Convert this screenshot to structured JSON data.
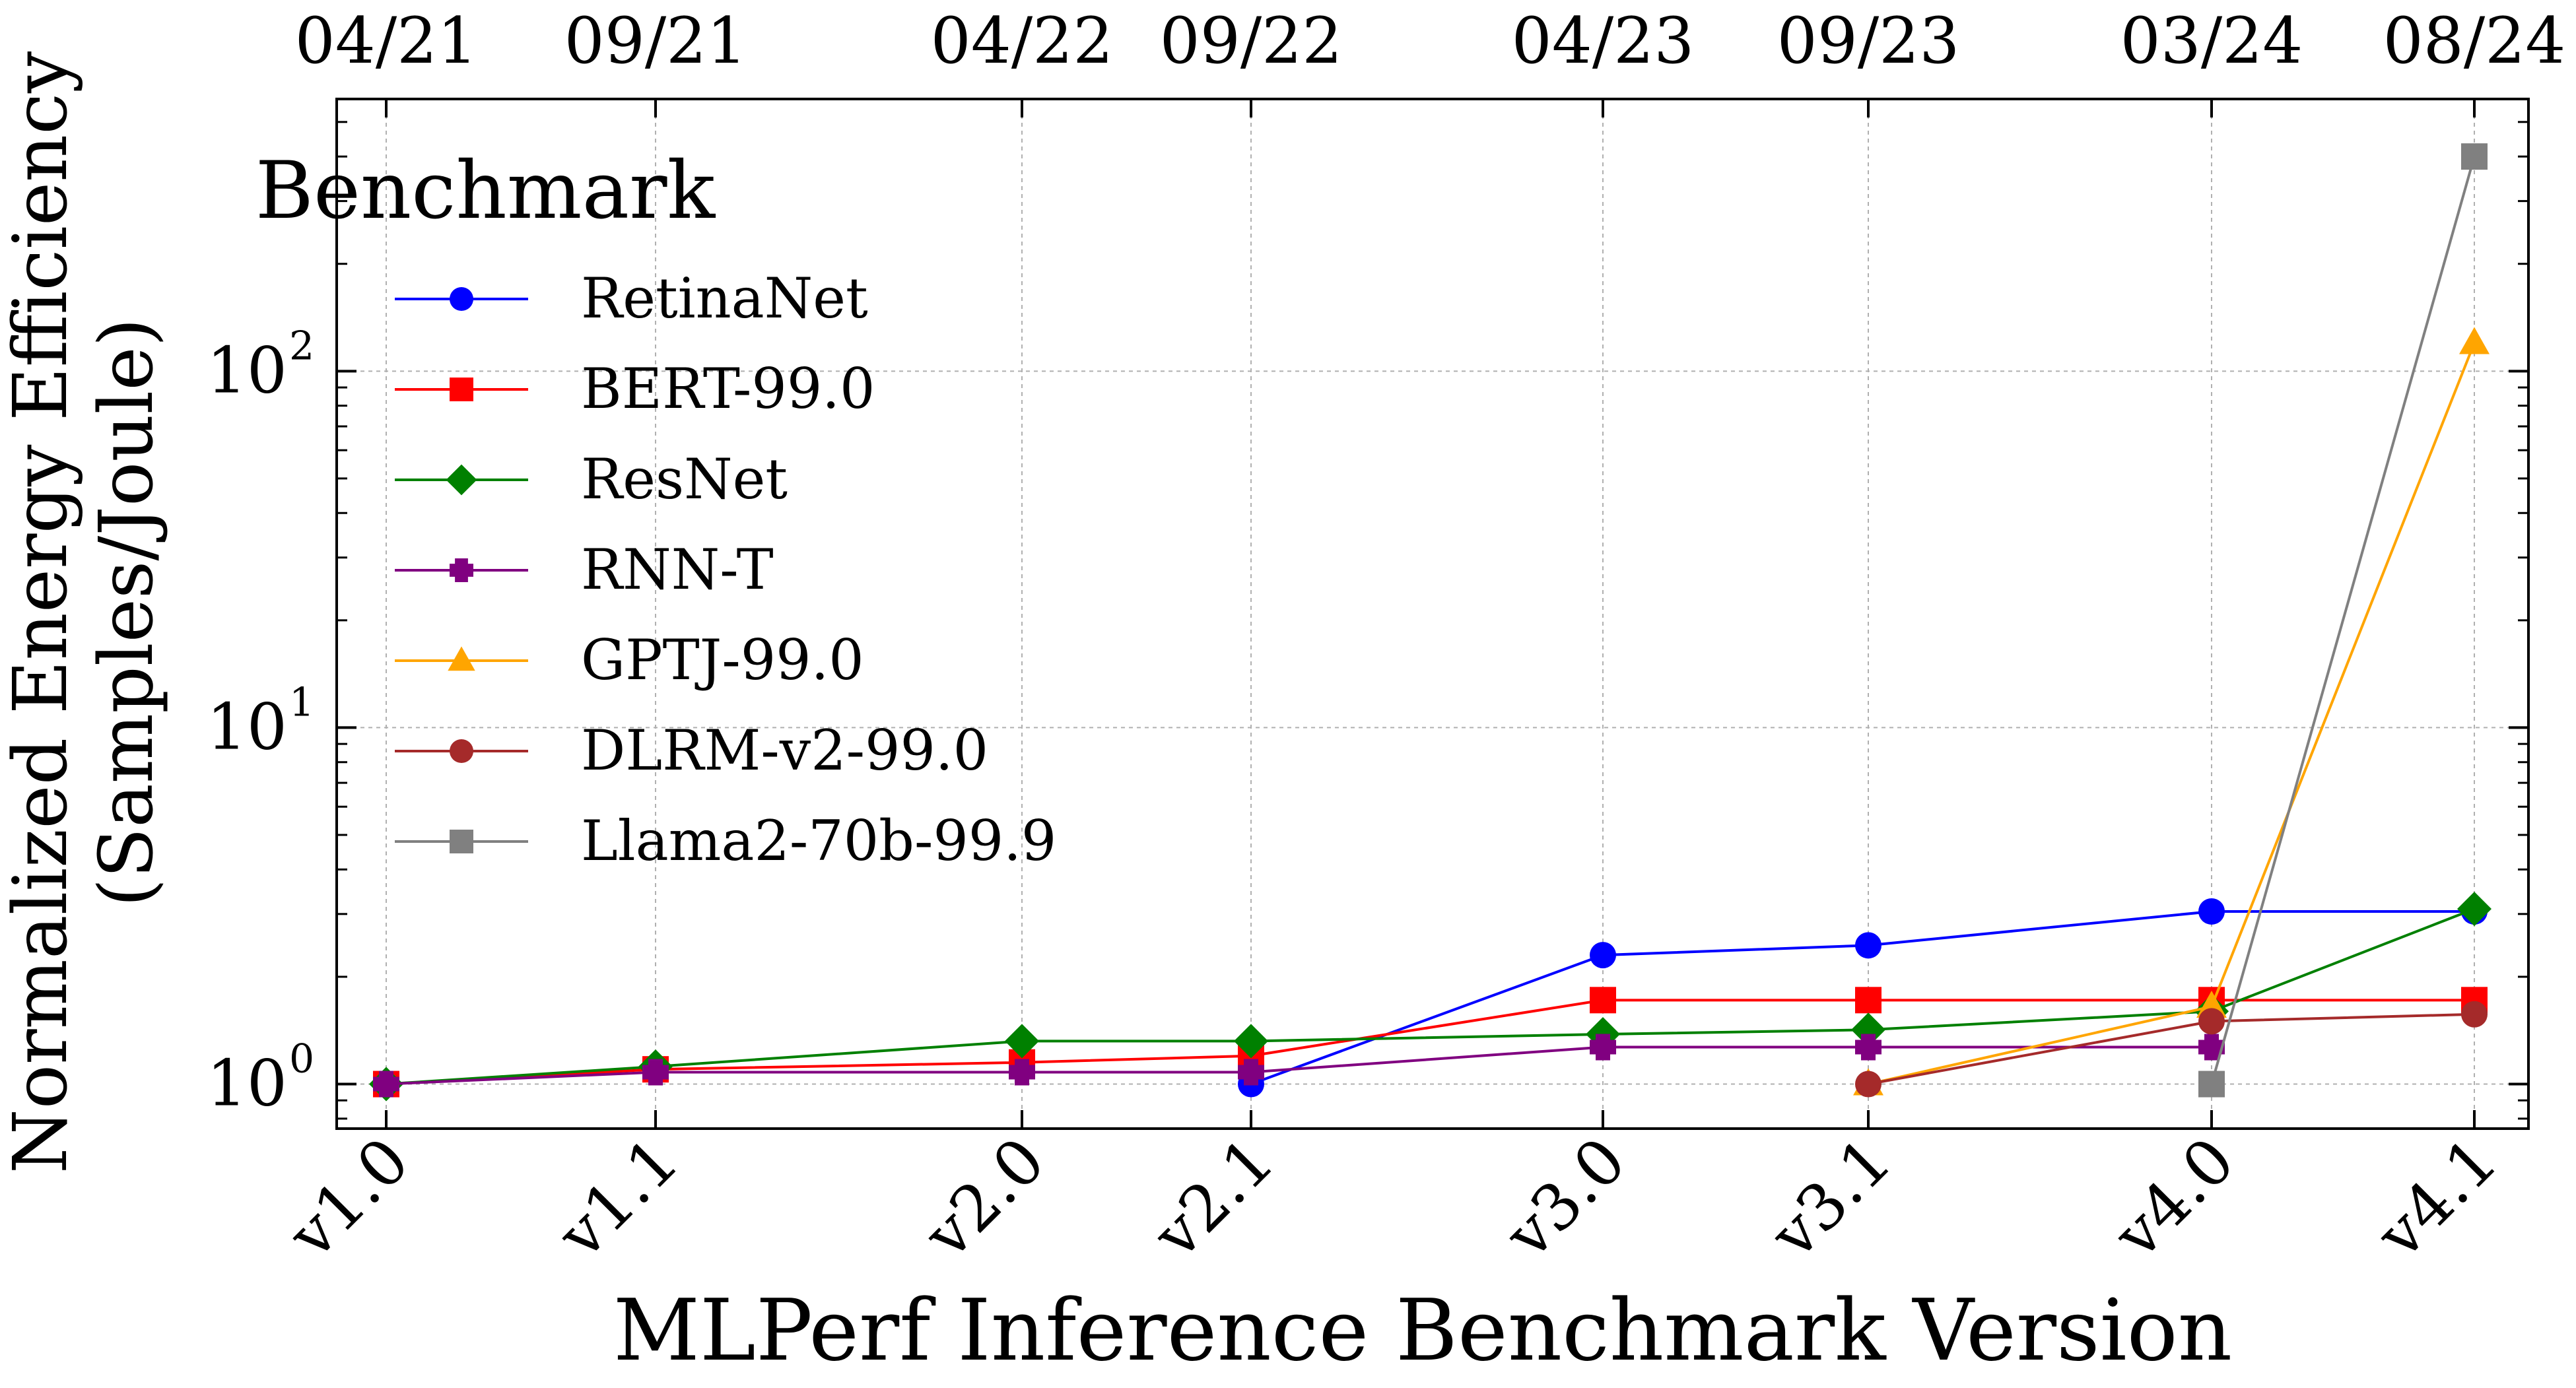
{
  "chart_data": {
    "type": "line",
    "x_categories": [
      "v1.0",
      "v1.1",
      "v2.0",
      "v2.1",
      "v3.0",
      "v3.1",
      "v4.0",
      "v4.1"
    ],
    "top_axis_labels": [
      "04/21",
      "09/21",
      "04/22",
      "09/22",
      "04/23",
      "09/23",
      "03/24",
      "08/24"
    ],
    "xlabel": "MLPerf Inference Benchmark Version",
    "ylabel_line1": "Normalized Energy Efficiency",
    "ylabel_line2": "(Samples/Joule)",
    "yscale": "log",
    "ylim": [
      0.75,
      580
    ],
    "y_ticks": [
      {
        "value": 1,
        "base": "10",
        "exp": "0"
      },
      {
        "value": 10,
        "base": "10",
        "exp": "1"
      },
      {
        "value": 100,
        "base": "10",
        "exp": "2"
      }
    ],
    "grid": true,
    "legend": {
      "title": "Benchmark",
      "position": "upper-left"
    },
    "series": [
      {
        "name": "RetinaNet",
        "color": "#0000ff",
        "marker": "circle",
        "values": [
          null,
          null,
          null,
          1.0,
          2.3,
          2.45,
          3.05,
          3.05
        ]
      },
      {
        "name": "BERT-99.0",
        "color": "#ff0000",
        "marker": "square",
        "values": [
          1.0,
          1.1,
          1.15,
          1.2,
          1.72,
          1.72,
          1.72,
          1.72
        ]
      },
      {
        "name": "ResNet",
        "color": "#008000",
        "marker": "diamond",
        "values": [
          1.0,
          1.12,
          1.32,
          1.32,
          1.38,
          1.42,
          1.6,
          3.1
        ]
      },
      {
        "name": "RNN-T",
        "color": "#800080",
        "marker": "plus",
        "values": [
          1.0,
          1.08,
          1.08,
          1.08,
          1.27,
          1.27,
          1.27,
          null
        ]
      },
      {
        "name": "GPTJ-99.0",
        "color": "#ffa500",
        "marker": "triangle",
        "values": [
          null,
          null,
          null,
          null,
          null,
          1.0,
          1.65,
          120
        ]
      },
      {
        "name": "DLRM-v2-99.0",
        "color": "#a52a2a",
        "marker": "circle",
        "values": [
          null,
          null,
          null,
          null,
          null,
          1.0,
          1.5,
          1.57
        ]
      },
      {
        "name": "Llama2-70b-99.9",
        "color": "#808080",
        "marker": "square",
        "values": [
          null,
          null,
          null,
          null,
          null,
          null,
          1.0,
          400
        ]
      }
    ]
  }
}
